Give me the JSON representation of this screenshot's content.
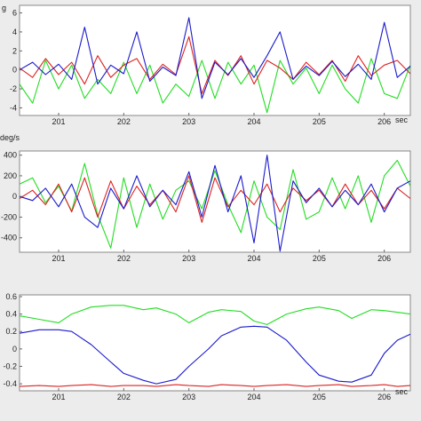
{
  "chart_data": [
    {
      "type": "line",
      "ylabel": "g",
      "xunit": "sec",
      "xlim": [
        200.4,
        206.4
      ],
      "ylim": [
        -4.8,
        6.8
      ],
      "xticks": [
        201,
        202,
        203,
        204,
        205,
        206
      ],
      "yticks": [
        6,
        4,
        2,
        0,
        -2,
        -4
      ],
      "grid": false,
      "series": [
        {
          "color": "#22dd22",
          "x": [
            200.4,
            200.6,
            200.8,
            201.0,
            201.2,
            201.4,
            201.6,
            201.8,
            202.0,
            202.2,
            202.4,
            202.6,
            202.8,
            203.0,
            203.2,
            203.4,
            203.6,
            203.8,
            204.0,
            204.2,
            204.4,
            204.6,
            204.8,
            205.0,
            205.2,
            205.4,
            205.6,
            205.8,
            206.0,
            206.2,
            206.4
          ],
          "y": [
            -1.5,
            -3.5,
            1.0,
            -2.0,
            0.5,
            -3.0,
            -1.0,
            -2.5,
            0.8,
            -2.5,
            0.5,
            -3.5,
            -1.5,
            -2.8,
            1.0,
            -3.0,
            0.8,
            -1.5,
            0.5,
            -4.5,
            1.0,
            -1.5,
            0.2,
            -2.5,
            0.5,
            -2.0,
            -3.5,
            1.2,
            -2.5,
            -3.0,
            0.5
          ]
        },
        {
          "color": "#dd2222",
          "x": [
            200.4,
            200.6,
            200.8,
            201.0,
            201.2,
            201.4,
            201.6,
            201.8,
            202.0,
            202.2,
            202.4,
            202.6,
            202.8,
            203.0,
            203.2,
            203.4,
            203.6,
            203.8,
            204.0,
            204.2,
            204.4,
            204.6,
            204.8,
            205.0,
            205.2,
            205.4,
            205.6,
            205.8,
            206.0,
            206.2,
            206.4
          ],
          "y": [
            0.2,
            -0.8,
            1.2,
            -0.5,
            0.8,
            -1.5,
            1.5,
            -0.8,
            0.5,
            1.2,
            -1.0,
            0.6,
            -0.5,
            3.5,
            -2.5,
            1.0,
            -0.6,
            1.5,
            -1.5,
            1.0,
            0.2,
            -1.0,
            0.8,
            -0.5,
            1.0,
            -1.2,
            1.5,
            -0.6,
            0.5,
            1.0,
            -0.4
          ]
        },
        {
          "color": "#1a1acc",
          "x": [
            200.4,
            200.6,
            200.8,
            201.0,
            201.2,
            201.4,
            201.6,
            201.8,
            202.0,
            202.2,
            202.4,
            202.6,
            202.8,
            203.0,
            203.2,
            203.4,
            203.6,
            203.8,
            204.0,
            204.2,
            204.4,
            204.6,
            204.8,
            205.0,
            205.2,
            205.4,
            205.6,
            205.8,
            206.0,
            206.2,
            206.4
          ],
          "y": [
            0.0,
            0.8,
            -0.5,
            0.6,
            -1.0,
            4.5,
            -1.5,
            0.5,
            -0.4,
            4.0,
            -1.2,
            0.3,
            -0.6,
            5.5,
            -3.0,
            0.8,
            -0.5,
            1.2,
            -0.8,
            1.5,
            4.0,
            -1.0,
            0.4,
            -0.6,
            0.9,
            -0.7,
            0.6,
            -1.0,
            5.0,
            -0.8,
            0.4
          ]
        }
      ]
    },
    {
      "type": "line",
      "ylabel": "deg/s",
      "xunit": "",
      "xlim": [
        200.4,
        206.4
      ],
      "ylim": [
        -540,
        440
      ],
      "xticks": [
        201,
        202,
        203,
        204,
        205,
        206
      ],
      "yticks": [
        400,
        200,
        0,
        -200,
        -400
      ],
      "grid": false,
      "series": [
        {
          "color": "#22dd22",
          "x": [
            200.4,
            200.6,
            200.8,
            201.0,
            201.2,
            201.4,
            201.6,
            201.8,
            202.0,
            202.2,
            202.4,
            202.6,
            202.8,
            203.0,
            203.2,
            203.4,
            203.6,
            203.8,
            204.0,
            204.2,
            204.4,
            204.6,
            204.8,
            205.0,
            205.2,
            205.4,
            205.6,
            205.8,
            206.0,
            206.2,
            206.4
          ],
          "y": [
            120,
            180,
            -60,
            100,
            -140,
            320,
            -180,
            -500,
            180,
            -300,
            120,
            -220,
            60,
            150,
            -120,
            250,
            -80,
            -350,
            150,
            -200,
            -320,
            260,
            -220,
            -150,
            180,
            -120,
            200,
            -250,
            200,
            350,
            100
          ]
        },
        {
          "color": "#dd2222",
          "x": [
            200.4,
            200.6,
            200.8,
            201.0,
            201.2,
            201.4,
            201.6,
            201.8,
            202.0,
            202.2,
            202.4,
            202.6,
            202.8,
            203.0,
            203.2,
            203.4,
            203.6,
            203.8,
            204.0,
            204.2,
            204.4,
            204.6,
            204.8,
            205.0,
            205.2,
            205.4,
            205.6,
            205.8,
            206.0,
            206.2,
            206.4
          ],
          "y": [
            -20,
            60,
            -80,
            120,
            -150,
            180,
            -200,
            150,
            -120,
            100,
            -80,
            60,
            -150,
            200,
            -250,
            180,
            -100,
            60,
            -80,
            120,
            -150,
            80,
            -40,
            60,
            -100,
            120,
            -80,
            60,
            -120,
            80,
            -20
          ]
        },
        {
          "color": "#1a1acc",
          "x": [
            200.4,
            200.6,
            200.8,
            201.0,
            201.2,
            201.4,
            201.6,
            201.8,
            202.0,
            202.2,
            202.4,
            202.6,
            202.8,
            203.0,
            203.2,
            203.4,
            203.6,
            203.8,
            204.0,
            204.2,
            204.4,
            204.6,
            204.8,
            205.0,
            205.2,
            205.4,
            205.6,
            205.8,
            206.0,
            206.2,
            206.4
          ],
          "y": [
            0,
            -40,
            80,
            -100,
            120,
            -200,
            -300,
            80,
            -120,
            200,
            -100,
            60,
            -80,
            240,
            -200,
            300,
            -150,
            200,
            -450,
            400,
            -530,
            150,
            -60,
            80,
            -100,
            60,
            -80,
            120,
            -150,
            80,
            150
          ]
        }
      ]
    },
    {
      "type": "line",
      "ylabel": "",
      "xunit": "sec",
      "xlim": [
        200.4,
        206.4
      ],
      "ylim": [
        -0.48,
        0.62
      ],
      "xticks": [
        201,
        202,
        203,
        204,
        205,
        206
      ],
      "yticks": [
        0.6,
        0.4,
        0.2,
        0,
        -0.2,
        -0.4
      ],
      "yticklabels": [
        "0.6",
        "0.4",
        "0.2",
        "0",
        "-0.2",
        "-0.4"
      ],
      "grid": false,
      "series": [
        {
          "color": "#22dd22",
          "x": [
            200.4,
            200.7,
            201.0,
            201.2,
            201.5,
            201.8,
            202.0,
            202.3,
            202.5,
            202.8,
            203.0,
            203.3,
            203.5,
            203.8,
            204.0,
            204.2,
            204.5,
            204.8,
            205.0,
            205.3,
            205.5,
            205.8,
            206.0,
            206.2,
            206.4
          ],
          "y": [
            0.38,
            0.34,
            0.3,
            0.4,
            0.48,
            0.5,
            0.5,
            0.45,
            0.47,
            0.4,
            0.3,
            0.42,
            0.45,
            0.43,
            0.32,
            0.28,
            0.4,
            0.46,
            0.48,
            0.44,
            0.35,
            0.45,
            0.44,
            0.42,
            0.4
          ]
        },
        {
          "color": "#1a1acc",
          "x": [
            200.4,
            200.7,
            201.0,
            201.2,
            201.5,
            201.8,
            202.0,
            202.3,
            202.5,
            202.8,
            203.0,
            203.3,
            203.5,
            203.8,
            204.0,
            204.2,
            204.5,
            204.8,
            205.0,
            205.3,
            205.5,
            205.8,
            206.0,
            206.2,
            206.4
          ],
          "y": [
            0.18,
            0.22,
            0.22,
            0.2,
            0.05,
            -0.15,
            -0.28,
            -0.36,
            -0.4,
            -0.35,
            -0.2,
            0.0,
            0.15,
            0.25,
            0.26,
            0.25,
            0.1,
            -0.15,
            -0.3,
            -0.37,
            -0.38,
            -0.3,
            -0.05,
            0.1,
            0.17
          ]
        },
        {
          "color": "#dd2222",
          "x": [
            200.4,
            200.7,
            201.0,
            201.2,
            201.5,
            201.8,
            202.0,
            202.3,
            202.5,
            202.8,
            203.0,
            203.3,
            203.5,
            203.8,
            204.0,
            204.2,
            204.5,
            204.8,
            205.0,
            205.3,
            205.5,
            205.8,
            206.0,
            206.2,
            206.4
          ],
          "y": [
            -0.43,
            -0.42,
            -0.43,
            -0.42,
            -0.41,
            -0.43,
            -0.42,
            -0.42,
            -0.43,
            -0.41,
            -0.42,
            -0.43,
            -0.41,
            -0.42,
            -0.43,
            -0.42,
            -0.41,
            -0.43,
            -0.42,
            -0.41,
            -0.43,
            -0.42,
            -0.41,
            -0.43,
            -0.42
          ]
        }
      ]
    }
  ]
}
